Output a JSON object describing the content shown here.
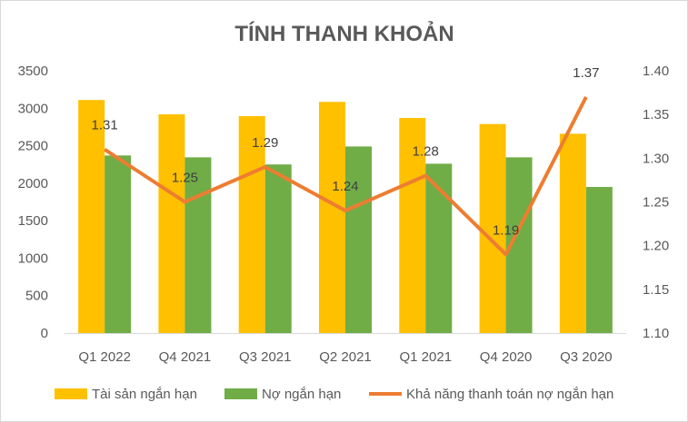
{
  "chart_data": {
    "type": "bar",
    "title": "TÍNH THANH KHOẢN",
    "categories": [
      "Q1 2022",
      "Q4 2021",
      "Q3 2021",
      "Q2 2021",
      "Q1 2021",
      "Q4 2020",
      "Q3 2020"
    ],
    "series": [
      {
        "name": "Tài sản ngắn hạn",
        "type": "bar",
        "axis": "left",
        "color": "#FFC000",
        "values": [
          3110,
          2920,
          2895,
          3085,
          2870,
          2790,
          2660
        ]
      },
      {
        "name": "Nợ ngắn hạn",
        "type": "bar",
        "axis": "left",
        "color": "#70AD47",
        "values": [
          2370,
          2345,
          2250,
          2490,
          2260,
          2345,
          1950
        ]
      },
      {
        "name": "Khả năng thanh toán nợ ngắn hạn",
        "type": "line",
        "axis": "right",
        "color": "#ED7D31",
        "values": [
          1.31,
          1.25,
          1.29,
          1.24,
          1.28,
          1.19,
          1.37
        ],
        "labels": [
          "1.31",
          "1.25",
          "1.29",
          "1.24",
          "1.28",
          "1.19",
          "1.37"
        ]
      }
    ],
    "y_left": {
      "min": 0,
      "max": 3500,
      "ticks": [
        "0",
        "500",
        "1000",
        "1500",
        "2000",
        "2500",
        "3000",
        "3500"
      ]
    },
    "y_right": {
      "min": 1.1,
      "max": 1.4,
      "ticks": [
        "1.10",
        "1.15",
        "1.20",
        "1.25",
        "1.30",
        "1.35",
        "1.40"
      ]
    },
    "grid": false,
    "legend_position": "bottom"
  }
}
